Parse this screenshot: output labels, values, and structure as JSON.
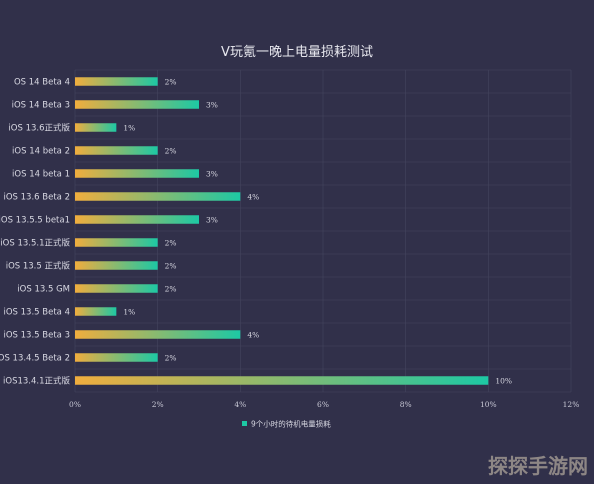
{
  "chart_data": {
    "type": "bar",
    "orientation": "horizontal",
    "title": "V玩氪一晚上电量损耗测试",
    "categories": [
      "OS 14 Beta 4",
      "iOS 14 Beta 3",
      "iOS 13.6正式版",
      "iOS 14 beta 2",
      "iOS 14 beta 1",
      "iOS 13.6 Beta 2",
      "iOS 13.5.5 beta1",
      "iOS 13.5.1正式版",
      "iOS 13.5 正式版",
      "iOS 13.5  GM",
      "iOS 13.5 Beta 4",
      "iOS 13.5 Beta 3",
      "OS 13.4.5 Beta 2",
      "iOS13.4.1正式版"
    ],
    "series": [
      {
        "name": "9个小时的待机电量损耗",
        "values": [
          2,
          3,
          1,
          2,
          3,
          4,
          3,
          2,
          2,
          2,
          1,
          4,
          2,
          10
        ],
        "labels": [
          "2%",
          "3%",
          "1%",
          "2%",
          "3%",
          "4%",
          "3%",
          "2%",
          "2%",
          "2%",
          "1%",
          "4%",
          "2%",
          "10%"
        ]
      }
    ],
    "xlim": [
      0,
      12
    ],
    "x_ticks": [
      0,
      2,
      4,
      6,
      8,
      10,
      12
    ],
    "x_tick_labels": [
      "0%",
      "2%",
      "4%",
      "6%",
      "8%",
      "10%",
      "12%"
    ],
    "grid": true,
    "legend_position": "bottom",
    "colors": {
      "background": "#31304a",
      "grid": "#45455e",
      "bar_start": "#f0ad3e",
      "bar_end": "#1dc8a4",
      "legend_marker": "#1dc8a4"
    }
  },
  "watermark": "探探手游网"
}
